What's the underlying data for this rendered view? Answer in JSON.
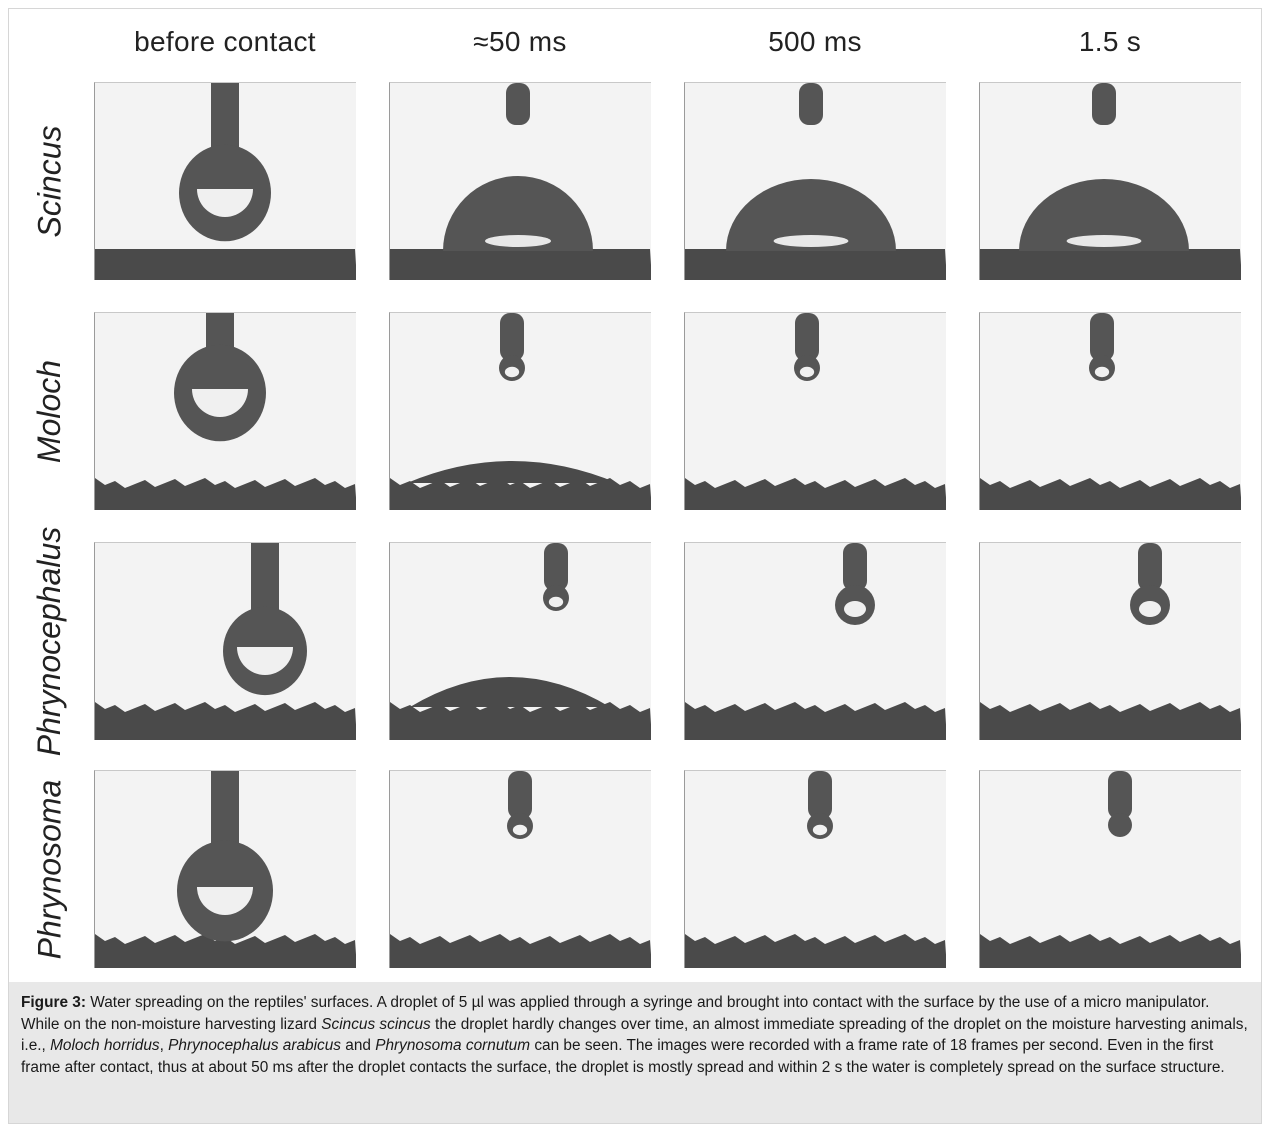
{
  "figure": {
    "columns": [
      "before contact",
      "≈50 ms",
      "500 ms",
      "1.5 s"
    ],
    "rows": [
      "Scincus",
      "Moloch",
      "Phrynocephalus",
      "Phrynosoma"
    ],
    "colors": {
      "panel_bg": "#f3f3f3",
      "droplet": "#555555",
      "surface": "#4a4a4a",
      "caption_bg": "#e8e8e8"
    },
    "panels": [
      [
        {
          "state": "droplet"
        },
        {
          "state": "beaded"
        },
        {
          "state": "beaded"
        },
        {
          "state": "beaded"
        }
      ],
      [
        {
          "state": "droplet"
        },
        {
          "state": "thin-film"
        },
        {
          "state": "spread"
        },
        {
          "state": "spread"
        }
      ],
      [
        {
          "state": "droplet"
        },
        {
          "state": "thin-film"
        },
        {
          "state": "spread"
        },
        {
          "state": "spread"
        }
      ],
      [
        {
          "state": "droplet"
        },
        {
          "state": "spread"
        },
        {
          "state": "spread"
        },
        {
          "state": "spread"
        }
      ]
    ]
  },
  "caption": {
    "label": "Figure 3:",
    "t1": " Water spreading on the reptiles' surfaces. A droplet of 5 µl was applied through a syringe and brought into contact with the surface by the use of a micro manipulator. While on the non-moisture harvesting lizard ",
    "i1": "Scincus scincus",
    "t2": " the droplet hardly changes over time, an almost immediate spreading of the droplet on the moisture harvesting animals, i.e., ",
    "i2": "Moloch horridus",
    "t3": ", ",
    "i3": "Phrynocephalus arabicus",
    "t4": " and ",
    "i4": "Phrynosoma cornutum",
    "t5": " can be seen. The images were recorded with a frame rate of 18 frames per second. Even in the first frame after contact, thus at about 50 ms after the droplet contacts the surface, the droplet is mostly spread and within 2 s the water is completely spread on the surface structure."
  }
}
